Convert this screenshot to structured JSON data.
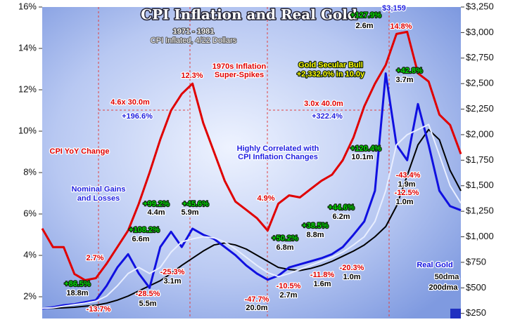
{
  "chart_data": {
    "type": "line",
    "title": "CPI Inflation and Real Gold",
    "subtitle": "1971 - 1981",
    "note": "CPI Inflated, 4/22 Dollars",
    "ylim": [
      0.95,
      16
    ],
    "yticks": [
      {
        "value": 2,
        "label": "2%"
      },
      {
        "value": 4,
        "label": "4%"
      },
      {
        "value": 6,
        "label": "6%"
      },
      {
        "value": 8,
        "label": "8%"
      },
      {
        "value": 10,
        "label": "10%"
      },
      {
        "value": 12,
        "label": "12%"
      },
      {
        "value": 14,
        "label": "14%"
      },
      {
        "value": 16,
        "label": "16%"
      }
    ],
    "y2lim": [
      200,
      3250
    ],
    "y2ticks": [
      {
        "value": 250,
        "label": "$250"
      },
      {
        "value": 500,
        "label": "$500"
      },
      {
        "value": 750,
        "label": "$750"
      },
      {
        "value": 1000,
        "label": "$1,000"
      },
      {
        "value": 1250,
        "label": "$1,250"
      },
      {
        "value": 1500,
        "label": "$1,500"
      },
      {
        "value": 1750,
        "label": "$1,750"
      },
      {
        "value": 2000,
        "label": "$2,000"
      },
      {
        "value": 2250,
        "label": "$2,250"
      },
      {
        "value": 2500,
        "label": "$2,500"
      },
      {
        "value": 2750,
        "label": "$2,750"
      },
      {
        "value": 3000,
        "label": "$3,000"
      },
      {
        "value": 3250,
        "label": "$3,250"
      }
    ],
    "series": [
      {
        "name": "CPI YoY Change",
        "color": "#e00000",
        "values": [
          5.3,
          4.4,
          4.4,
          3.1,
          2.8,
          2.9,
          3.6,
          4.4,
          5.2,
          6.5,
          8.0,
          9.6,
          11.0,
          11.8,
          12.3,
          10.4,
          9.0,
          7.6,
          6.6,
          6.2,
          5.8,
          5.2,
          6.5,
          6.9,
          6.8,
          7.2,
          7.6,
          7.9,
          8.6,
          9.7,
          11.2,
          12.3,
          13.2,
          14.7,
          14.8,
          12.8,
          12.4,
          10.8,
          10.3,
          8.9
        ]
      },
      {
        "name": "200dma",
        "color": "#000000",
        "axis": "y2",
        "values": [
          300,
          300,
          305,
          310,
          320,
          330,
          350,
          380,
          420,
          470,
          520,
          570,
          640,
          720,
          790,
          860,
          920,
          940,
          920,
          880,
          820,
          760,
          700,
          680,
          670,
          690,
          720,
          760,
          810,
          860,
          920,
          1000,
          1100,
          1300,
          1600,
          1900,
          2050,
          1950,
          1650,
          1450
        ]
      },
      {
        "name": "Real Gold",
        "color": "#1010e0",
        "axis": "y2",
        "values": [
          297,
          310,
          330,
          340,
          360,
          380,
          520,
          700,
          830,
          640,
          500,
          900,
          1050,
          900,
          1080,
          1020,
          980,
          900,
          820,
          720,
          640,
          580,
          620,
          700,
          730,
          760,
          790,
          830,
          900,
          1020,
          1150,
          1450,
          2600,
          1900,
          1750,
          2300,
          1900,
          1450,
          1300,
          1260
        ]
      },
      {
        "name": "50dma",
        "color": "#e8eeff",
        "axis": "y2",
        "values": [
          300,
          305,
          320,
          335,
          350,
          370,
          420,
          520,
          640,
          700,
          640,
          700,
          850,
          950,
          980,
          1000,
          990,
          950,
          880,
          800,
          720,
          650,
          610,
          640,
          680,
          720,
          760,
          800,
          850,
          920,
          1000,
          1150,
          1450,
          1900,
          2000,
          2050,
          2100,
          1800,
          1500,
          1330
        ]
      }
    ],
    "annotations": [
      {
        "text": "1970s Inflation",
        "color": "#e00000"
      },
      {
        "text": "Super-Spikes",
        "color": "#e00000"
      },
      {
        "text": "Nominal Gains",
        "color": "#2020e0"
      },
      {
        "text": "and Losses",
        "color": "#2020e0"
      },
      {
        "text": "Highly Correlated with",
        "color": "#2020e0"
      },
      {
        "text": "CPI Inflation Changes",
        "color": "#2020e0"
      },
      {
        "text": "Gold Secular Bull",
        "color": "#ffff00"
      },
      {
        "text": "+2,332.0% in 10.0y",
        "color": "#ffff00"
      },
      {
        "text": "4.6x 30.0m",
        "color": "#e00000"
      },
      {
        "text": "+196.6%",
        "color": "#2020e0"
      },
      {
        "text": "3.0x 40.0m",
        "color": "#e00000"
      },
      {
        "text": "+322.4%",
        "color": "#2020e0"
      },
      {
        "text": "+127.9%",
        "color": "#00dd00"
      },
      {
        "text": "2.6m",
        "color": "#000000"
      },
      {
        "text": "$3,159",
        "color": "#2020e0"
      },
      {
        "text": "14.8%",
        "color": "#e00000"
      },
      {
        "text": "12.3%",
        "color": "#e00000"
      },
      {
        "text": "4.9%",
        "color": "#e00000"
      },
      {
        "text": "2.7%",
        "color": "#e00000"
      },
      {
        "text": "+86.5%",
        "color": "#00dd00"
      },
      {
        "text": "18.8m",
        "color": "#000000"
      },
      {
        "text": "-13.7%",
        "color": "#e00000"
      },
      {
        "text": "+108.2%",
        "color": "#00dd00"
      },
      {
        "text": "6.6m",
        "color": "#000000"
      },
      {
        "text": "+99.2%",
        "color": "#00dd00"
      },
      {
        "text": "4.4m",
        "color": "#000000"
      },
      {
        "text": "+45.6%",
        "color": "#00dd00"
      },
      {
        "text": "5.9m",
        "color": "#000000"
      },
      {
        "text": "-28.5%",
        "color": "#e00000"
      },
      {
        "text": "5.5m",
        "color": "#000000"
      },
      {
        "text": "-25.3%",
        "color": "#e00000"
      },
      {
        "text": "3.1m",
        "color": "#000000"
      },
      {
        "text": "-47.7%",
        "color": "#e00000"
      },
      {
        "text": "20.0m",
        "color": "#000000"
      },
      {
        "text": "+50.2%",
        "color": "#00dd00"
      },
      {
        "text": "6.8m",
        "color": "#000000"
      },
      {
        "text": "-10.5%",
        "color": "#e00000"
      },
      {
        "text": "2.7m",
        "color": "#000000"
      },
      {
        "text": "+38.5%",
        "color": "#00dd00"
      },
      {
        "text": "8.8m",
        "color": "#000000"
      },
      {
        "text": "-11.8%",
        "color": "#e00000"
      },
      {
        "text": "1.6m",
        "color": "#000000"
      },
      {
        "text": "+44.6%",
        "color": "#00dd00"
      },
      {
        "text": "6.2m",
        "color": "#000000"
      },
      {
        "text": "-20.3%",
        "color": "#e00000"
      },
      {
        "text": "1.0m",
        "color": "#000000"
      },
      {
        "text": "+120.4%",
        "color": "#00dd00"
      },
      {
        "text": "10.1m",
        "color": "#000000"
      },
      {
        "text": "+42.8%",
        "color": "#00dd00"
      },
      {
        "text": "3.7m",
        "color": "#000000"
      },
      {
        "text": "-43.4%",
        "color": "#e00000"
      },
      {
        "text": "1.9m",
        "color": "#000000"
      },
      {
        "text": "-12.5%",
        "color": "#e00000"
      },
      {
        "text": "1.0m",
        "color": "#000000"
      }
    ]
  }
}
